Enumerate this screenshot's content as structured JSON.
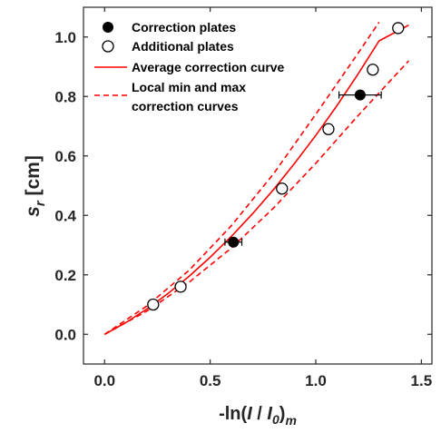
{
  "chart_data": {
    "type": "scatter",
    "xlabel": {
      "prefix": "-ln(",
      "i": "I",
      "slash": " / ",
      "i0": "I",
      "i0_sub": "0",
      "close": ")",
      "m_sub": "m"
    },
    "ylabel": {
      "s": "s",
      "sub": "r",
      "unit": " [cm]"
    },
    "xlim": [
      -0.1,
      1.55
    ],
    "ylim": [
      -0.1,
      1.1
    ],
    "x_ticks": [
      0.0,
      0.5,
      1.0,
      1.5
    ],
    "x_tick_labels": [
      "0.0",
      "0.5",
      "1.0",
      "1.5"
    ],
    "y_ticks": [
      0.0,
      0.2,
      0.4,
      0.6,
      0.8,
      1.0
    ],
    "y_tick_labels": [
      "0.0",
      "0.2",
      "0.4",
      "0.6",
      "0.8",
      "1.0"
    ],
    "legend_position": "top-left",
    "colors": {
      "curve": "#ff0000",
      "axes": "#262626",
      "marker": "#000000"
    },
    "series": [
      {
        "name": "Correction plates",
        "marker": "filled-circle",
        "points": [
          {
            "x": 0.61,
            "y": 0.31,
            "xerr": 0.04
          },
          {
            "x": 1.21,
            "y": 0.805,
            "xerr": 0.1
          }
        ]
      },
      {
        "name": "Additional plates",
        "marker": "open-circle",
        "points": [
          {
            "x": 0.23,
            "y": 0.1
          },
          {
            "x": 0.36,
            "y": 0.16
          },
          {
            "x": 0.84,
            "y": 0.49
          },
          {
            "x": 1.06,
            "y": 0.69
          },
          {
            "x": 1.27,
            "y": 0.89
          },
          {
            "x": 1.39,
            "y": 1.03
          }
        ]
      },
      {
        "name": "Average correction curve",
        "style": "solid-line",
        "points": [
          [
            0.0,
            0.0
          ],
          [
            0.1,
            0.039
          ],
          [
            0.2,
            0.085
          ],
          [
            0.3,
            0.137
          ],
          [
            0.4,
            0.195
          ],
          [
            0.5,
            0.259
          ],
          [
            0.6,
            0.329
          ],
          [
            0.7,
            0.405
          ],
          [
            0.8,
            0.487
          ],
          [
            0.9,
            0.575
          ],
          [
            1.0,
            0.669
          ],
          [
            1.1,
            0.769
          ],
          [
            1.2,
            0.875
          ],
          [
            1.3,
            0.987
          ],
          [
            1.44,
            1.04
          ]
        ]
      },
      {
        "name": "Local min and max correction curves",
        "legend_lines": [
          "Local min and max",
          "correction curves"
        ],
        "style": "dashed-line",
        "curves": [
          [
            [
              0.0,
              0.0
            ],
            [
              0.2,
              0.095
            ],
            [
              0.4,
              0.215
            ],
            [
              0.6,
              0.365
            ],
            [
              0.8,
              0.54
            ],
            [
              1.0,
              0.74
            ],
            [
              1.2,
              0.945
            ],
            [
              1.3,
              1.05
            ]
          ],
          [
            [
              0.0,
              0.0
            ],
            [
              0.2,
              0.078
            ],
            [
              0.4,
              0.175
            ],
            [
              0.6,
              0.29
            ],
            [
              0.8,
              0.425
            ],
            [
              1.0,
              0.575
            ],
            [
              1.2,
              0.735
            ],
            [
              1.44,
              0.92
            ]
          ]
        ]
      }
    ]
  }
}
